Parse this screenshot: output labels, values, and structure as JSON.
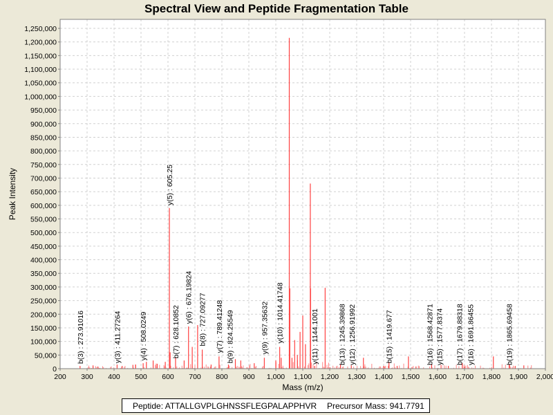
{
  "chart_data": {
    "type": "bar",
    "title": "Spectral View and Peptide Fragmentation Table",
    "xlabel": "Mass (m/z)",
    "ylabel": "Peak Intensity",
    "xlim": [
      200,
      2000
    ],
    "ylim": [
      0,
      1250000
    ],
    "x_ticks": [
      "200",
      "300",
      "400",
      "500",
      "600",
      "700",
      "800",
      "900",
      "1,000",
      "1,100",
      "1,200",
      "1,300",
      "1,400",
      "1,500",
      "1,600",
      "1,700",
      "1,800",
      "1,900",
      "2,000"
    ],
    "y_ticks": [
      "0",
      "50,000",
      "100,000",
      "150,000",
      "200,000",
      "250,000",
      "300,000",
      "350,000",
      "400,000",
      "450,000",
      "500,000",
      "550,000",
      "600,000",
      "650,000",
      "700,000",
      "750,000",
      "800,000",
      "850,000",
      "900,000",
      "950,000",
      "1,000,000",
      "1,050,000",
      "1,100,000",
      "1,150,000",
      "1,200,000",
      "1,250,000"
    ],
    "grid": true,
    "color": "#ff4040",
    "peaks": [
      [
        273.9,
        10000
      ],
      [
        322,
        12000
      ],
      [
        340,
        8000
      ],
      [
        411.3,
        15000
      ],
      [
        430,
        10000
      ],
      [
        470,
        14000
      ],
      [
        480,
        15000
      ],
      [
        508,
        20000
      ],
      [
        520,
        25000
      ],
      [
        545,
        30000
      ],
      [
        560,
        18000
      ],
      [
        590,
        25000
      ],
      [
        605.25,
        590000
      ],
      [
        608,
        60000
      ],
      [
        628.1,
        40000
      ],
      [
        660,
        30000
      ],
      [
        676.2,
        155000
      ],
      [
        690,
        80000
      ],
      [
        710,
        160000
      ],
      [
        727.1,
        70000
      ],
      [
        760,
        15000
      ],
      [
        789.4,
        45000
      ],
      [
        824.3,
        15000
      ],
      [
        850,
        35000
      ],
      [
        870,
        30000
      ],
      [
        920,
        20000
      ],
      [
        957.4,
        40000
      ],
      [
        1000,
        30000
      ],
      [
        1014.4,
        80000
      ],
      [
        1020,
        40000
      ],
      [
        1050,
        1215000
      ],
      [
        1052,
        295000
      ],
      [
        1060,
        40000
      ],
      [
        1070,
        105000
      ],
      [
        1080,
        50000
      ],
      [
        1090,
        135000
      ],
      [
        1100,
        195000
      ],
      [
        1110,
        90000
      ],
      [
        1128,
        680000
      ],
      [
        1129,
        295000
      ],
      [
        1144.1,
        10000
      ],
      [
        1183,
        297000
      ],
      [
        1240,
        15000
      ],
      [
        1280,
        12000
      ],
      [
        1325,
        40000
      ],
      [
        1400,
        10000
      ],
      [
        1419.7,
        25000
      ],
      [
        1450,
        10000
      ],
      [
        1492,
        45000
      ],
      [
        1520,
        8000
      ],
      [
        1577.8,
        15000
      ],
      [
        1640,
        10000
      ],
      [
        1691.9,
        20000
      ],
      [
        1700,
        8000
      ],
      [
        1807,
        45000
      ],
      [
        1865.7,
        15000
      ],
      [
        1888,
        10000
      ],
      [
        1920,
        12000
      ]
    ],
    "annotations": [
      {
        "label": "b(3) : 273.91016",
        "mz": 273.91,
        "at": 10000
      },
      {
        "label": "y(3) : 411.27264",
        "mz": 411.27,
        "at": 12000
      },
      {
        "label": "y(4) : 508.0249",
        "mz": 508.02,
        "at": 22000
      },
      {
        "label": "y(5) : 605.25",
        "mz": 605.25,
        "at": 592000
      },
      {
        "label": "b(7) : 628.10852",
        "mz": 628.11,
        "at": 30000
      },
      {
        "label": "y(6) : 676.19824",
        "mz": 676.2,
        "at": 157000
      },
      {
        "label": "b(8) : 727.09277",
        "mz": 727.09,
        "at": 75000
      },
      {
        "label": "y(7) : 789.41248",
        "mz": 789.41,
        "at": 50000
      },
      {
        "label": "b(9) : 824.25549",
        "mz": 824.26,
        "at": 12000
      },
      {
        "label": "y(9) : 957.35632",
        "mz": 957.36,
        "at": 45000
      },
      {
        "label": "y(10) : 1014.41748",
        "mz": 1014.42,
        "at": 85000
      },
      {
        "label": "y(11) : 1144.1001",
        "mz": 1144.1,
        "at": 8000
      },
      {
        "label": "b(13) : 1245.39868",
        "mz": 1245.4,
        "at": 5000
      },
      {
        "label": "y(12) : 1256.91992",
        "mz": 1251.0,
        "at": 5000
      },
      {
        "label": "b(15) : 1419.677",
        "mz": 1419.68,
        "at": 12000
      },
      {
        "label": "b(16) : 1568.42871",
        "mz": 1570.5,
        "at": 5000
      },
      {
        "label": "y(15) : 1577.8374",
        "mz": 1576.0,
        "at": 5000
      },
      {
        "label": "b(17) : 1679.88318",
        "mz": 1681.0,
        "at": 5000
      },
      {
        "label": "y(16) : 1691.86455",
        "mz": 1686.0,
        "at": 5000
      },
      {
        "label": "b(19) : 1865.69458",
        "mz": 1865.69,
        "at": 5000
      }
    ]
  },
  "footer": {
    "peptide": "Peptide: ATTALLGVPLGHNSSFLEGPALAPPHVR",
    "precursor": "Precursor Mass: 941.7791"
  }
}
